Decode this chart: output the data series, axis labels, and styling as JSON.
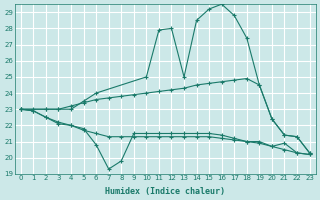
{
  "xlabel": "Humidex (Indice chaleur)",
  "background_color": "#cce8e8",
  "grid_color": "#ffffff",
  "line_color": "#1a7a6a",
  "xlim": [
    -0.5,
    23.5
  ],
  "ylim": [
    19,
    29.5
  ],
  "xticks": [
    0,
    1,
    2,
    3,
    4,
    5,
    6,
    7,
    8,
    9,
    10,
    11,
    12,
    13,
    14,
    15,
    16,
    17,
    18,
    19,
    20,
    21,
    22,
    23
  ],
  "yticks": [
    19,
    20,
    21,
    22,
    23,
    24,
    25,
    26,
    27,
    28,
    29
  ],
  "lines": [
    {
      "x": [
        0,
        2,
        3,
        4,
        5,
        6,
        10,
        11,
        12,
        13,
        14,
        15,
        16,
        17,
        18,
        19,
        20,
        21,
        22,
        23
      ],
      "y": [
        23,
        23,
        23,
        23,
        23.5,
        24,
        25,
        27.9,
        28.0,
        25.0,
        28.5,
        29.2,
        29.5,
        28.8,
        27.4,
        24.5,
        22.4,
        21.4,
        21.3,
        20.3
      ]
    },
    {
      "x": [
        0,
        1,
        2,
        3,
        4,
        5,
        6,
        7,
        8,
        9,
        10,
        11,
        12,
        13,
        14,
        15,
        16,
        17,
        18,
        19,
        20,
        21,
        22,
        23
      ],
      "y": [
        23,
        23,
        23,
        23,
        23.2,
        23.4,
        23.6,
        23.7,
        23.8,
        23.9,
        24.0,
        24.1,
        24.2,
        24.3,
        24.5,
        24.6,
        24.7,
        24.8,
        24.9,
        24.5,
        22.4,
        21.4,
        21.3,
        20.3
      ]
    },
    {
      "x": [
        0,
        1,
        2,
        3,
        4,
        5,
        6,
        7,
        8,
        9,
        10,
        11,
        12,
        13,
        14,
        15,
        16,
        17,
        18,
        19,
        20,
        21,
        22,
        23
      ],
      "y": [
        23,
        22.9,
        22.5,
        22.2,
        22.0,
        21.8,
        20.8,
        19.3,
        19.8,
        21.5,
        21.5,
        21.5,
        21.5,
        21.5,
        21.5,
        21.5,
        21.4,
        21.2,
        21.0,
        21.0,
        20.7,
        20.9,
        20.3,
        20.2
      ]
    },
    {
      "x": [
        0,
        1,
        2,
        3,
        4,
        5,
        6,
        7,
        8,
        9,
        10,
        11,
        12,
        13,
        14,
        15,
        16,
        17,
        18,
        19,
        20,
        21,
        22,
        23
      ],
      "y": [
        23,
        22.9,
        22.5,
        22.1,
        22.0,
        21.7,
        21.5,
        21.3,
        21.3,
        21.3,
        21.3,
        21.3,
        21.3,
        21.3,
        21.3,
        21.3,
        21.2,
        21.1,
        21.0,
        20.9,
        20.7,
        20.5,
        20.3,
        20.2
      ]
    }
  ]
}
